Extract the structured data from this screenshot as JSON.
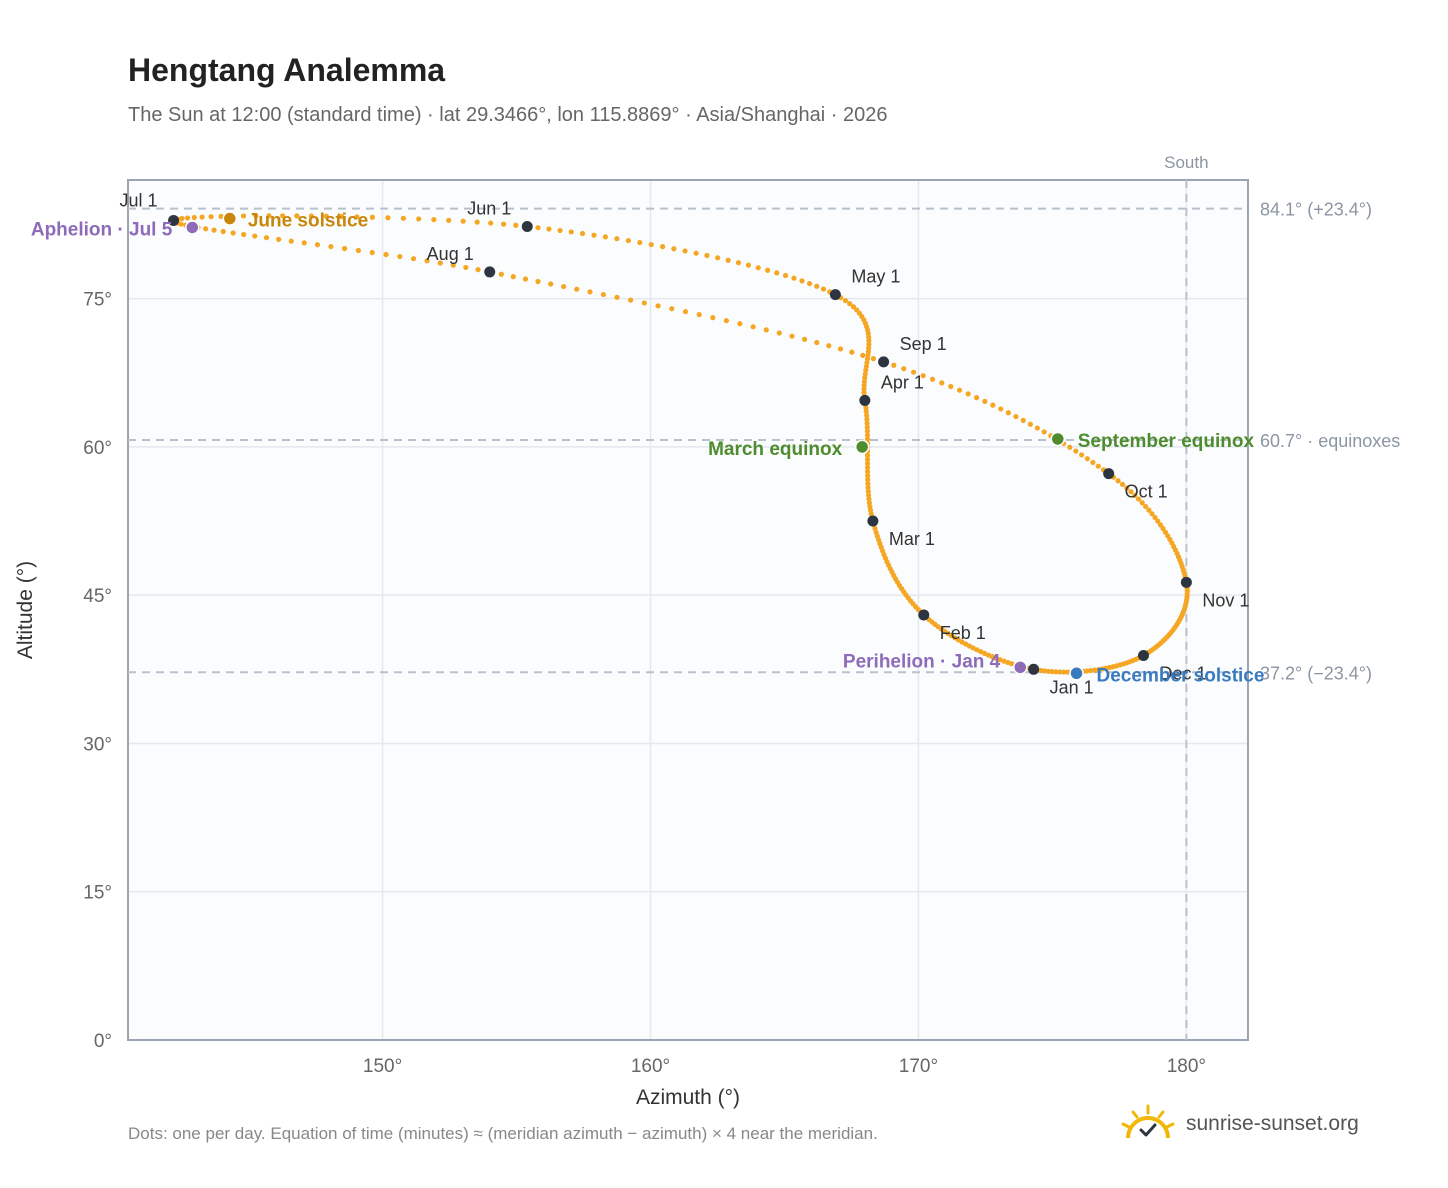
{
  "page": {
    "title": "Hengtang Analemma",
    "subtitle": "The Sun at 12:00 (standard time) · lat 29.3466°, lon 115.8869° · Asia/Shanghai · 2026",
    "footnote": "Dots: one per day. Equation of time (minutes) ≈ (meridian azimuth − azimuth) × 4 near the meridian.",
    "brand": "sunrise-sunset.org"
  },
  "chart_data": {
    "type": "scatter",
    "xlabel": "Azimuth (°)",
    "ylabel": "Altitude (°)",
    "xlim": [
      140.5,
      182.3
    ],
    "ylim": [
      0,
      87
    ],
    "x_ticks": [
      150,
      160,
      170,
      180
    ],
    "y_ticks": [
      0,
      15,
      30,
      45,
      60,
      75
    ],
    "tick_suffix": "°",
    "grid": true,
    "colors": {
      "path": "#F5A623",
      "month_marker": "#2D3640",
      "solstice_june": "#C8860A",
      "solstice_december": "#3A7BBF",
      "equinox": "#4E8C2E",
      "apsis": "#8E6BB8",
      "reference_line": "#B8C2CC",
      "plot_bg": "#FAFCFE",
      "grid": "#E4E9EE",
      "frame": "#9AA5B1"
    },
    "meridian": {
      "azimuth": 180,
      "label": "South"
    },
    "reference_lines": [
      {
        "altitude": 84.1,
        "label": "84.1° (+23.4°)"
      },
      {
        "altitude": 60.7,
        "label": "60.7° · equinoxes"
      },
      {
        "altitude": 37.2,
        "label": "37.2° (−23.4°)"
      }
    ],
    "month_markers": [
      {
        "label": "Jan 1",
        "azimuth": 174.3,
        "altitude": 37.5
      },
      {
        "label": "Feb 1",
        "azimuth": 170.2,
        "altitude": 43.0
      },
      {
        "label": "Mar 1",
        "azimuth": 168.3,
        "altitude": 52.5
      },
      {
        "label": "Apr 1",
        "azimuth": 168.0,
        "altitude": 64.7
      },
      {
        "label": "May 1",
        "azimuth": 166.9,
        "altitude": 75.4
      },
      {
        "label": "Jun 1",
        "azimuth": 155.4,
        "altitude": 82.3
      },
      {
        "label": "Jul 1",
        "azimuth": 142.2,
        "altitude": 82.9
      },
      {
        "label": "Aug 1",
        "azimuth": 154.0,
        "altitude": 77.7
      },
      {
        "label": "Sep 1",
        "azimuth": 168.7,
        "altitude": 68.6
      },
      {
        "label": "Oct 1",
        "azimuth": 177.1,
        "altitude": 57.3
      },
      {
        "label": "Nov 1",
        "azimuth": 180.0,
        "altitude": 46.3
      },
      {
        "label": "Dec 1",
        "azimuth": 178.4,
        "altitude": 38.9
      }
    ],
    "events": [
      {
        "label": "June solstice",
        "azimuth": 144.3,
        "altitude": 83.1,
        "kind": "solstice_june"
      },
      {
        "label": "December solstice",
        "azimuth": 175.9,
        "altitude": 37.1,
        "kind": "solstice_december"
      },
      {
        "label": "March equinox",
        "azimuth": 167.9,
        "altitude": 60.0,
        "kind": "equinox"
      },
      {
        "label": "September equinox",
        "azimuth": 175.2,
        "altitude": 60.8,
        "kind": "equinox"
      },
      {
        "label": "Aphelion · Jul 5",
        "azimuth": 142.9,
        "altitude": 82.2,
        "kind": "apsis"
      },
      {
        "label": "Perihelion · Jan 4",
        "azimuth": 173.8,
        "altitude": 37.7,
        "kind": "apsis"
      }
    ]
  }
}
